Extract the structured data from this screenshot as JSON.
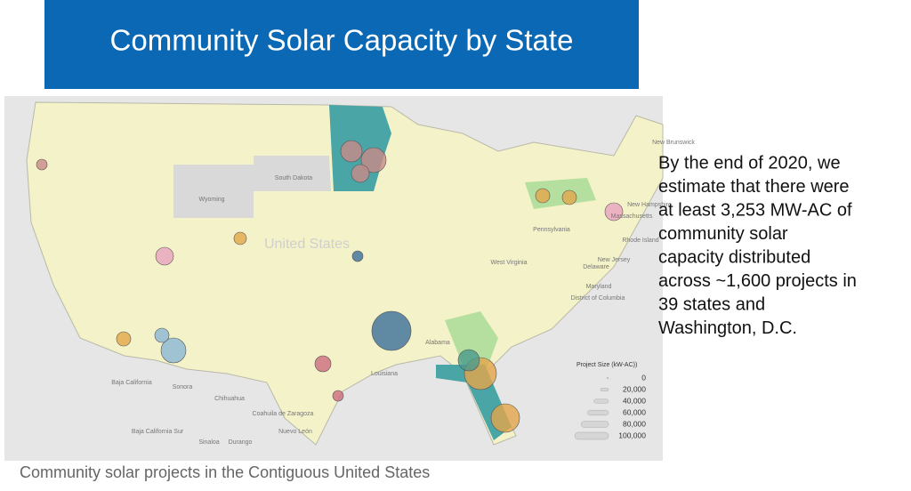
{
  "header": {
    "title": "Community Solar Capacity by State"
  },
  "body": {
    "lines": [
      "By the end of 2020, we",
      "estimate that there were",
      "at least 3,253 MW-AC of",
      "community solar",
      "capacity distributed",
      "across ~1,600 projects in",
      "39 states and",
      "Washington, D.C."
    ]
  },
  "caption": "Community solar projects in the Contiguous United States",
  "legend": {
    "title": "Project Size (kW-AC))",
    "items": [
      0,
      {
        "value": 20000,
        "label": "20,000"
      },
      {
        "value": 40000,
        "label": "40,000"
      },
      {
        "value": 60000,
        "label": "60,000"
      },
      {
        "value": 80000,
        "label": "80,000"
      },
      {
        "value": 100000,
        "label": "100,000"
      }
    ]
  },
  "map": {
    "labels": [
      "Wyoming",
      "South Dakota",
      "United States",
      "Pennsylvania",
      "West Virginia",
      "Delaware",
      "New Jersey",
      "Maryland",
      "District of Columbia",
      "Rhode Island",
      "Massachusetts",
      "New Hampshire",
      "New Brunswick",
      "Alabama",
      "Louisiana",
      "Baja California",
      "Sonora",
      "Chihuahua",
      "Coahuila de Zaragoza",
      "Nuevo León",
      "Baja California Sur",
      "Sinaloa",
      "Durango"
    ]
  }
}
